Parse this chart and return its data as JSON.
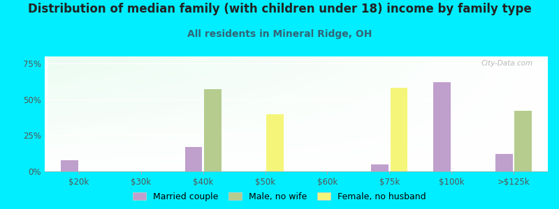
{
  "title": "Distribution of median family (with children under 18) income by family type",
  "subtitle": "All residents in Mineral Ridge, OH",
  "background_color": "#00eeff",
  "categories": [
    "$20k",
    "$30k",
    "$40k",
    "$50k",
    "$60k",
    "$75k",
    "$100k",
    ">$125k"
  ],
  "series": {
    "Married couple": {
      "color": "#bf9fcc",
      "values": [
        8,
        0,
        17,
        0,
        0,
        5,
        62,
        12
      ]
    },
    "Male, no wife": {
      "color": "#b5cc8e",
      "values": [
        0,
        0,
        57,
        0,
        0,
        0,
        0,
        42
      ]
    },
    "Female, no husband": {
      "color": "#f5f57a",
      "values": [
        0,
        0,
        0,
        40,
        0,
        58,
        0,
        0
      ]
    }
  },
  "ylim": [
    0,
    80
  ],
  "yticks": [
    0,
    25,
    50,
    75
  ],
  "ytick_labels": [
    "0%",
    "25%",
    "50%",
    "75%"
  ],
  "bar_width": 0.28,
  "title_fontsize": 12,
  "subtitle_fontsize": 10,
  "axis_fontsize": 8.5,
  "watermark": "City-Data.com"
}
